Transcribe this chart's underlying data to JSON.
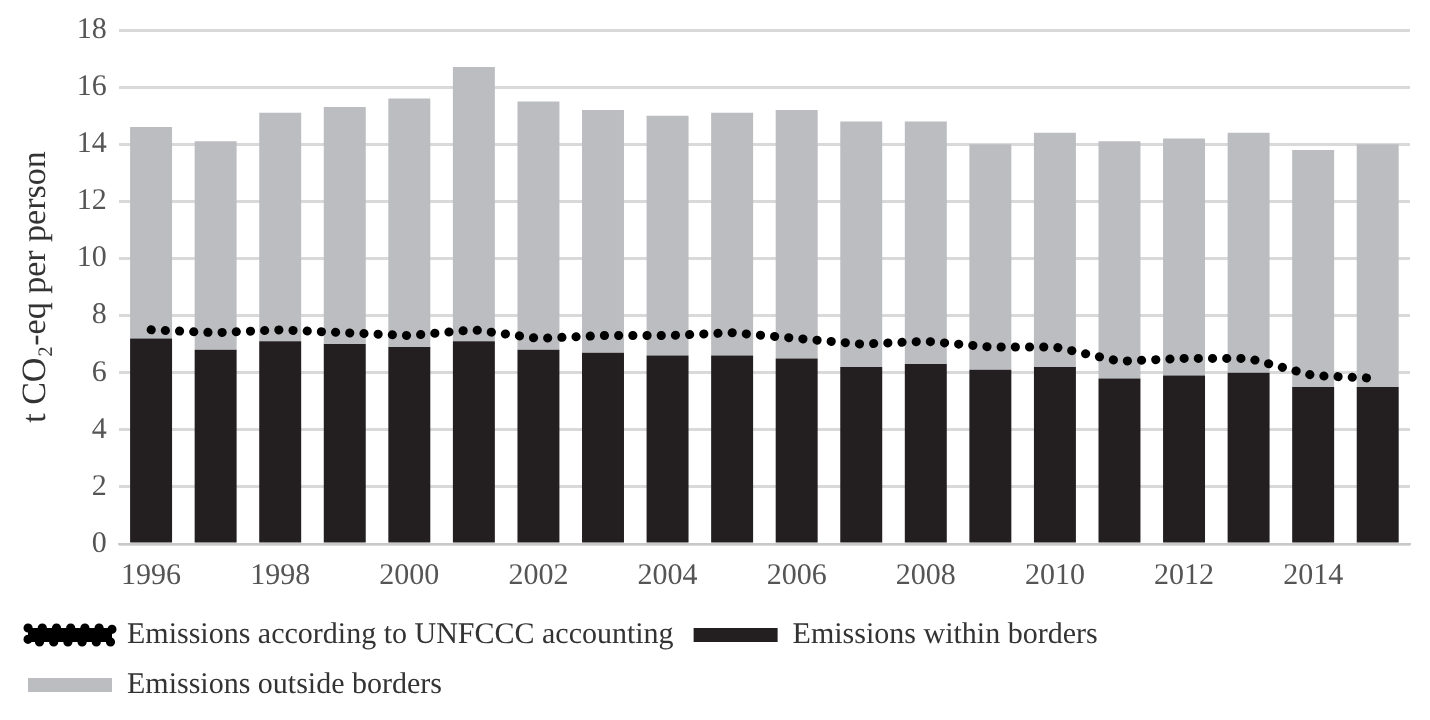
{
  "chart_data": {
    "type": "bar",
    "stacked": true,
    "ylabel": "t CO₂-eq per person",
    "categories": [
      "1996",
      null,
      "1998",
      null,
      "2000",
      null,
      "2002",
      null,
      "2004",
      null,
      "2006",
      null,
      "2008",
      null,
      "2010",
      null,
      "2012",
      null,
      "2014",
      null
    ],
    "series": [
      {
        "name": "Emissions within borders",
        "color": "#231f20",
        "values": [
          7.2,
          6.8,
          7.1,
          7.0,
          6.9,
          7.1,
          6.8,
          6.7,
          6.6,
          6.6,
          6.5,
          6.2,
          6.3,
          6.1,
          6.2,
          5.8,
          5.9,
          6.0,
          5.5,
          5.5
        ]
      },
      {
        "name": "Emissions outside borders",
        "color": "#bcbdc0",
        "values": [
          7.4,
          7.3,
          8.0,
          8.3,
          8.7,
          9.6,
          8.7,
          8.5,
          8.4,
          8.5,
          8.7,
          8.6,
          8.5,
          7.9,
          8.2,
          8.3,
          8.3,
          8.4,
          8.3,
          8.5
        ]
      },
      {
        "name": "Emissions according to UNFCCC accounting",
        "type": "line",
        "color": "#000000",
        "marker": "none",
        "line_style": "dotted",
        "values": [
          7.5,
          7.4,
          7.5,
          7.4,
          7.3,
          7.5,
          7.2,
          7.3,
          7.3,
          7.4,
          7.2,
          7.0,
          7.1,
          6.9,
          6.9,
          6.4,
          6.5,
          6.5,
          5.9,
          5.8
        ]
      }
    ],
    "ylim": [
      0,
      18
    ],
    "yticks": [
      0,
      2,
      4,
      6,
      8,
      10,
      12,
      14,
      16,
      18
    ],
    "grid": "y",
    "legend": "bottom"
  }
}
